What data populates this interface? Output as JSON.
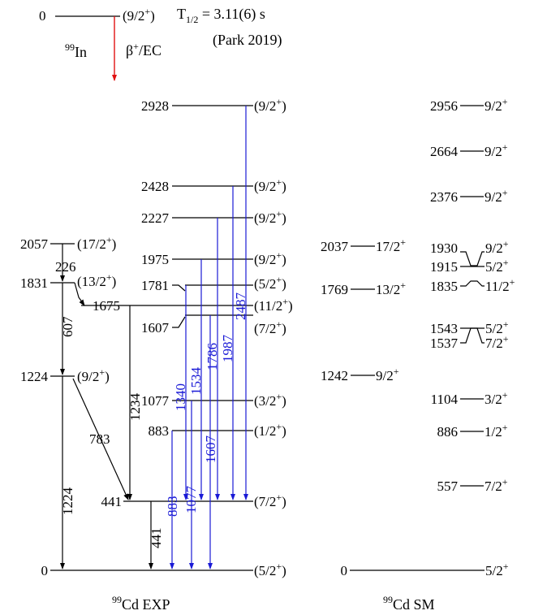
{
  "parent": {
    "energy": "0",
    "spin": "(9/2",
    "spin_sup": "+",
    "spin_close": ")",
    "nucleus_mass": "99",
    "nucleus": "In",
    "decay": "β",
    "decay_sup": "+",
    "decay_mode": "/EC",
    "halflife_prefix": "T",
    "halflife_sub": "1/2",
    "halflife_value": " = 3.11(6) s",
    "reference": "(Park 2019)"
  },
  "exp": {
    "label_mass": "99",
    "label": "Cd EXP",
    "levels": [
      {
        "e": "2928",
        "spin": "(9/2",
        "par": "+",
        "close": ")"
      },
      {
        "e": "2428",
        "spin": "(9/2",
        "par": "+",
        "close": ")"
      },
      {
        "e": "2227",
        "spin": "(9/2",
        "par": "+",
        "close": ")"
      },
      {
        "e": "1975",
        "spin": "(9/2",
        "par": "+",
        "close": ")"
      },
      {
        "e": "1781",
        "spin": "(5/2",
        "par": "+",
        "close": ")"
      },
      {
        "e": "1675",
        "spin": "(11/2",
        "par": "+",
        "close": ")"
      },
      {
        "e": "1607",
        "spin": "(7/2",
        "par": "+",
        "close": ")"
      },
      {
        "e": "1077",
        "spin": "(3/2",
        "par": "+",
        "close": ")"
      },
      {
        "e": "883",
        "spin": "(1/2",
        "par": "+",
        "close": ")"
      },
      {
        "e": "441",
        "spin": "(7/2",
        "par": "+",
        "close": ")"
      },
      {
        "e": "0",
        "spin": "(5/2",
        "par": "+",
        "close": ")"
      }
    ],
    "side_levels": [
      {
        "e": "2057",
        "spin": "(17/2",
        "par": "+",
        "close": ")"
      },
      {
        "e": "1831",
        "spin": "(13/2",
        "par": "+",
        "close": ")"
      },
      {
        "e": "1224",
        "spin": "(9/2",
        "par": "+",
        "close": ")"
      }
    ],
    "blue_gammas": [
      "2487",
      "1987",
      "1786",
      "1534",
      "1340",
      "1607",
      "1077",
      "883"
    ],
    "black_gammas": [
      "226",
      "607",
      "1224",
      "783",
      "1234",
      "441"
    ]
  },
  "sm": {
    "label_mass": "99",
    "label": "Cd SM",
    "levels": [
      {
        "e": "2956",
        "spin": "9/2",
        "par": "+"
      },
      {
        "e": "2664",
        "spin": "9/2",
        "par": "+"
      },
      {
        "e": "2376",
        "spin": "9/2",
        "par": "+"
      },
      {
        "e": "2037",
        "spin": "17/2",
        "par": "+"
      },
      {
        "e": "1769",
        "spin": "13/2",
        "par": "+"
      },
      {
        "e": "1242",
        "spin": "9/2",
        "par": "+"
      },
      {
        "e": "0",
        "spin": "5/2",
        "par": "+"
      },
      {
        "e": "1930",
        "spin": "9/2",
        "par": "+"
      },
      {
        "e": "1915",
        "spin": "5/2",
        "par": "+"
      },
      {
        "e": "1835",
        "spin": "11/2",
        "par": "+"
      },
      {
        "e": "1543",
        "spin": "5/2",
        "par": "+"
      },
      {
        "e": "1537",
        "spin": "7/2",
        "par": "+"
      },
      {
        "e": "1104",
        "spin": "3/2",
        "par": "+"
      },
      {
        "e": "886",
        "spin": "1/2",
        "par": "+"
      },
      {
        "e": "557",
        "spin": "7/2",
        "par": "+"
      }
    ]
  },
  "colors": {
    "gamma_new": "#1a1ad6",
    "beta_arrow": "#e01010",
    "line": "#000000"
  }
}
